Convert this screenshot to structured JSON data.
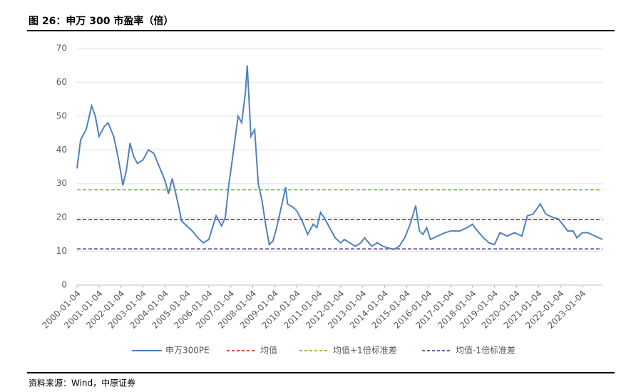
{
  "title": "图 26：申万 300 市盈率（倍）",
  "source": "资料来源：Wind，中原证券",
  "chart_data": {
    "type": "line",
    "ylim": [
      0,
      70
    ],
    "yticks": [
      0,
      10,
      20,
      30,
      40,
      50,
      60,
      70
    ],
    "grid": true,
    "xlim": [
      "2000-01-04",
      "2023-12-04"
    ],
    "xticks": [
      "2000-01-04",
      "2001-01-04",
      "2002-01-04",
      "2003-01-04",
      "2004-01-04",
      "2005-01-04",
      "2006-01-04",
      "2007-01-04",
      "2008-01-04",
      "2009-01-04",
      "2010-01-04",
      "2011-01-04",
      "2012-01-04",
      "2013-01-04",
      "2014-01-04",
      "2015-01-04",
      "2016-01-04",
      "2017-01-04",
      "2018-01-04",
      "2019-01-04",
      "2020-01-04",
      "2021-01-04",
      "2022-01-04",
      "2023-01-04"
    ],
    "x": [
      "2000-01-04",
      "2000-03-04",
      "2000-06-04",
      "2000-09-04",
      "2000-11-04",
      "2001-01-04",
      "2001-04-04",
      "2001-06-04",
      "2001-09-04",
      "2001-11-04",
      "2002-01-04",
      "2002-02-04",
      "2002-04-04",
      "2002-06-04",
      "2002-08-04",
      "2002-10-04",
      "2003-01-04",
      "2003-04-04",
      "2003-07-04",
      "2003-10-04",
      "2004-01-04",
      "2004-03-04",
      "2004-05-04",
      "2004-07-04",
      "2004-09-04",
      "2004-10-04",
      "2005-01-04",
      "2005-04-04",
      "2005-07-04",
      "2005-10-04",
      "2006-01-04",
      "2006-03-04",
      "2006-05-04",
      "2006-08-04",
      "2006-10-04",
      "2006-12-04",
      "2007-02-04",
      "2007-05-04",
      "2007-07-04",
      "2007-09-04",
      "2007-10-04",
      "2007-12-04",
      "2008-02-04",
      "2008-04-04",
      "2008-06-04",
      "2008-08-04",
      "2008-10-04",
      "2008-12-04",
      "2009-02-04",
      "2009-05-04",
      "2009-07-04",
      "2009-08-04",
      "2009-11-04",
      "2010-01-04",
      "2010-04-04",
      "2010-07-04",
      "2010-10-04",
      "2010-12-04",
      "2011-02-04",
      "2011-04-04",
      "2011-07-04",
      "2011-10-04",
      "2012-01-04",
      "2012-03-04",
      "2012-06-04",
      "2012-09-04",
      "2012-12-04",
      "2013-02-04",
      "2013-06-04",
      "2013-09-04",
      "2013-12-04",
      "2014-03-04",
      "2014-06-04",
      "2014-09-04",
      "2014-12-04",
      "2015-03-04",
      "2015-06-04",
      "2015-08-04",
      "2015-10-04",
      "2015-12-04",
      "2016-02-04",
      "2016-06-04",
      "2016-10-04",
      "2017-01-04",
      "2017-06-04",
      "2017-10-04",
      "2018-01-04",
      "2018-03-04",
      "2018-07-04",
      "2018-10-04",
      "2019-01-04",
      "2019-04-04",
      "2019-08-04",
      "2019-12-04",
      "2020-02-04",
      "2020-04-04",
      "2020-07-04",
      "2020-10-04",
      "2021-02-04",
      "2021-05-04",
      "2021-09-04",
      "2021-12-04",
      "2022-03-04",
      "2022-05-04",
      "2022-08-04",
      "2022-10-04",
      "2023-01-04",
      "2023-04-04",
      "2023-08-04",
      "2023-12-04"
    ],
    "series": [
      {
        "name": "申万300PE",
        "color": "#4f81bd",
        "values": [
          34.5,
          43,
          46,
          53,
          50,
          44,
          47,
          48,
          44,
          39,
          33,
          29.5,
          34,
          42,
          38,
          36,
          37,
          40,
          39,
          35,
          31,
          27,
          31.5,
          27,
          22,
          19,
          17.5,
          16,
          14,
          12.5,
          13.5,
          17,
          20.5,
          17.5,
          20,
          30,
          38,
          50,
          48,
          57,
          65,
          44,
          46,
          30,
          25,
          18,
          12,
          13,
          17,
          24,
          29,
          24,
          23,
          22,
          19,
          15,
          18,
          17,
          21.5,
          20,
          17,
          14,
          12.5,
          13.5,
          12.5,
          11.5,
          12.5,
          14,
          11.5,
          12.5,
          11.5,
          11,
          10.5,
          11.5,
          14,
          18,
          23.5,
          16,
          15,
          17,
          13.5,
          14.5,
          15.5,
          16,
          16,
          17,
          18,
          16.5,
          14,
          12.5,
          12,
          15.5,
          14.5,
          15.5,
          15,
          14.5,
          20.5,
          21,
          24,
          21,
          20,
          19.5,
          17.5,
          16,
          16,
          14,
          15.5,
          15.5,
          14.5,
          13.5
        ]
      }
    ],
    "reference_lines": [
      {
        "name": "均值",
        "color": "#e0403a",
        "value": 19.4
      },
      {
        "name": "均值+1倍标准差",
        "color": "#8cc63f",
        "value": 28.2
      },
      {
        "name": "均值-1倍标准差",
        "color": "#7a5ea8",
        "value": 10.7
      }
    ]
  }
}
